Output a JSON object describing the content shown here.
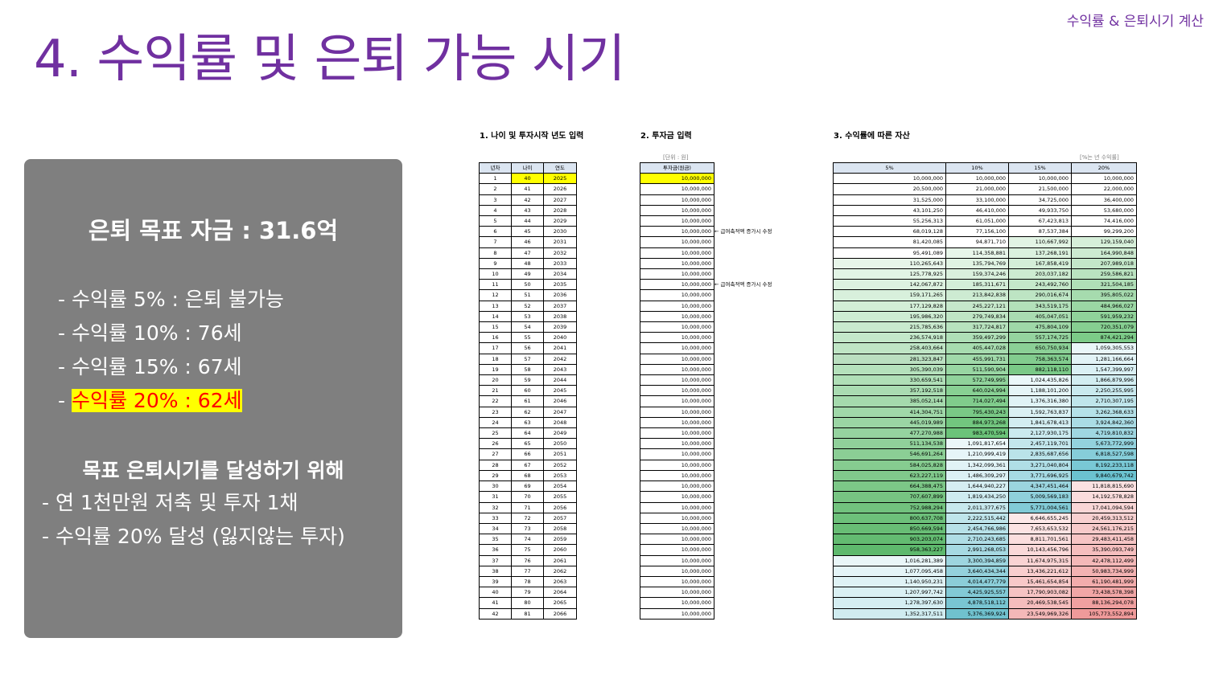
{
  "header": {
    "title": "4. 수익률 및 은퇴 가능 시기",
    "corner_label": "수익률 & 은퇴시기 계산"
  },
  "summary": {
    "goal": "은퇴 목표 자금 : 31.6억",
    "rates": [
      "- 수익률    5% : 은퇴 불가능",
      "- 수익률 10% : 76세",
      "- 수익률 15% : 67세"
    ],
    "highlight_prefix": "- ",
    "highlight": "수익률 20% : 62세",
    "achieve_title": "목표 은퇴시기를 달성하기 위해",
    "achieve_items": [
      "- 연 1천만원 저축 및 투자 1채",
      "- 수익률 20% 달성 (잃지않는 투자)"
    ]
  },
  "section1": {
    "label": "1. 나이 및 투자시작 년도 입력",
    "headers": [
      "년차",
      "나이",
      "연도"
    ]
  },
  "section2": {
    "label": "2. 투자금 입력",
    "unit": "[단위 : 원]",
    "header": "투자금(원금)",
    "memo": "← 급여축적액 증가시 수정"
  },
  "section3": {
    "label": "3. 수익률에 따른 자산",
    "unit": "[%는 년 수익률]",
    "headers": [
      "5%",
      "10%",
      "15%",
      "20%"
    ]
  },
  "colors": {
    "title": "#7030a0",
    "gray_box": "#7f7f7f",
    "highlight_bg": "#ffff00",
    "highlight_text": "#ff0000",
    "header_bg": "#dbe5f1"
  },
  "rows": [
    {
      "n": "1",
      "age": "40",
      "year": "2025",
      "invest": "10,000,000",
      "v": [
        "10,000,000",
        "10,000,000",
        "10,000,000",
        "10,000,000"
      ],
      "c": [
        "",
        "",
        "",
        ""
      ]
    },
    {
      "n": "2",
      "age": "41",
      "year": "2026",
      "invest": "10,000,000",
      "v": [
        "20,500,000",
        "21,000,000",
        "21,500,000",
        "22,000,000"
      ],
      "c": [
        "",
        "",
        "",
        ""
      ]
    },
    {
      "n": "3",
      "age": "42",
      "year": "2027",
      "invest": "10,000,000",
      "v": [
        "31,525,000",
        "33,100,000",
        "34,725,000",
        "36,400,000"
      ],
      "c": [
        "",
        "",
        "",
        ""
      ]
    },
    {
      "n": "4",
      "age": "43",
      "year": "2028",
      "invest": "10,000,000",
      "v": [
        "43,101,250",
        "46,410,000",
        "49,933,750",
        "53,680,000"
      ],
      "c": [
        "",
        "",
        "",
        ""
      ]
    },
    {
      "n": "5",
      "age": "44",
      "year": "2029",
      "invest": "10,000,000",
      "v": [
        "55,256,313",
        "61,051,000",
        "67,423,813",
        "74,416,000"
      ],
      "c": [
        "",
        "",
        "",
        ""
      ]
    },
    {
      "n": "6",
      "age": "45",
      "year": "2030",
      "invest": "10,000,000",
      "v": [
        "68,019,128",
        "77,156,100",
        "87,537,384",
        "99,299,200"
      ],
      "c": [
        "",
        "",
        "",
        ""
      ]
    },
    {
      "n": "7",
      "age": "46",
      "year": "2031",
      "invest": "10,000,000",
      "v": [
        "81,420,085",
        "94,871,710",
        "110,667,992",
        "129,159,040"
      ],
      "c": [
        "",
        "",
        "#e2f4e4",
        "#d6efd9"
      ]
    },
    {
      "n": "8",
      "age": "47",
      "year": "2032",
      "invest": "10,000,000",
      "v": [
        "95,491,089",
        "114,358,881",
        "137,268,191",
        "164,990,848"
      ],
      "c": [
        "",
        "#e8f6ea",
        "#dbf1de",
        "#cdebd1"
      ]
    },
    {
      "n": "9",
      "age": "48",
      "year": "2033",
      "invest": "10,000,000",
      "v": [
        "110,265,643",
        "135,794,769",
        "167,858,419",
        "207,989,018"
      ],
      "c": [
        "#e7f5e9",
        "#e0f3e3",
        "#d4eed8",
        "#c4e7c9"
      ]
    },
    {
      "n": "10",
      "age": "49",
      "year": "2034",
      "invest": "10,000,000",
      "v": [
        "125,778,925",
        "159,374,246",
        "203,037,182",
        "259,586,821"
      ],
      "c": [
        "#e2f4e5",
        "#daf0dd",
        "#cdebd1",
        "#bae3c0"
      ]
    },
    {
      "n": "11",
      "age": "50",
      "year": "2035",
      "invest": "10,000,000",
      "v": [
        "142,067,872",
        "185,311,671",
        "243,492,760",
        "321,504,185"
      ],
      "c": [
        "#ddf2e0",
        "#d4eed8",
        "#c5e8ca",
        "#b0dfb7"
      ]
    },
    {
      "n": "12",
      "age": "51",
      "year": "2036",
      "invest": "10,000,000",
      "v": [
        "159,171,265",
        "213,842,838",
        "290,016,674",
        "395,805,022"
      ],
      "c": [
        "#d8f0dc",
        "#cdebd2",
        "#bde4c3",
        "#a6dbae"
      ]
    },
    {
      "n": "13",
      "age": "52",
      "year": "2037",
      "invest": "10,000,000",
      "v": [
        "177,129,828",
        "245,227,121",
        "343,519,175",
        "484,966,027"
      ],
      "c": [
        "#d3eed7",
        "#c6e8cb",
        "#b3e0ba",
        "#9bd7a4"
      ]
    },
    {
      "n": "14",
      "age": "53",
      "year": "2038",
      "invest": "10,000,000",
      "v": [
        "195,986,320",
        "279,749,834",
        "405,047,051",
        "591,959,232"
      ],
      "c": [
        "#ceecd3",
        "#bfe5c5",
        "#a9dcb1",
        "#90d39a"
      ]
    },
    {
      "n": "15",
      "age": "54",
      "year": "2039",
      "invest": "10,000,000",
      "v": [
        "215,785,636",
        "317,724,817",
        "475,804,109",
        "720,351,079"
      ],
      "c": [
        "#c9eace",
        "#b7e2be",
        "#9fd8a8",
        "#86cf91"
      ]
    },
    {
      "n": "16",
      "age": "55",
      "year": "2040",
      "invest": "10,000,000",
      "v": [
        "236,574,918",
        "359,497,299",
        "557,174,725",
        "874,421,294"
      ],
      "c": [
        "#c4e8ca",
        "#afdfb7",
        "#95d49f",
        "#7ccb88"
      ]
    },
    {
      "n": "17",
      "age": "56",
      "year": "2041",
      "invest": "10,000,000",
      "v": [
        "258,403,664",
        "405,447,028",
        "650,750,934",
        "1,059,305,553"
      ],
      "c": [
        "#bfe5c5",
        "#a7dcaf",
        "#8bd096",
        "#e9f6f8"
      ]
    },
    {
      "n": "18",
      "age": "57",
      "year": "2042",
      "invest": "10,000,000",
      "v": [
        "281,323,847",
        "455,991,731",
        "758,363,574",
        "1,281,166,664"
      ],
      "c": [
        "#badfc0",
        "#a0d9a9",
        "#82cc8e",
        "#e2f3f6"
      ]
    },
    {
      "n": "19",
      "age": "58",
      "year": "2043",
      "invest": "10,000,000",
      "v": [
        "305,390,039",
        "511,590,904",
        "882,118,110",
        "1,547,399,997"
      ],
      "c": [
        "#b5e1bc",
        "#98d6a2",
        "#7ac987",
        "#daf0f4"
      ]
    },
    {
      "n": "20",
      "age": "59",
      "year": "2044",
      "invest": "10,000,000",
      "v": [
        "330,659,541",
        "572,749,995",
        "1,024,435,826",
        "1,866,879,996"
      ],
      "c": [
        "#b0dfb7",
        "#90d39b",
        "#eaf7f9",
        "#d2edf1"
      ]
    },
    {
      "n": "21",
      "age": "60",
      "year": "2045",
      "invest": "10,000,000",
      "v": [
        "357,192,518",
        "640,024,994",
        "1,188,101,200",
        "2,250,255,995"
      ],
      "c": [
        "#aadcb2",
        "#88d093",
        "#e5f5f7",
        "#c9e9ee"
      ]
    },
    {
      "n": "22",
      "age": "61",
      "year": "2046",
      "invest": "10,000,000",
      "v": [
        "385,052,144",
        "714,027,494",
        "1,376,316,380",
        "2,710,307,195"
      ],
      "c": [
        "#a5daad",
        "#80cc8c",
        "#e0f3f6",
        "#bfe5eb"
      ]
    },
    {
      "n": "23",
      "age": "62",
      "year": "2047",
      "invest": "10,000,000",
      "v": [
        "414,304,751",
        "795,430,243",
        "1,592,763,837",
        "3,262,368,633"
      ],
      "c": [
        "#a0d8a9",
        "#79c986",
        "#daf0f3",
        "#b5e1e8"
      ]
    },
    {
      "n": "24",
      "age": "63",
      "year": "2048",
      "invest": "10,000,000",
      "v": [
        "445,019,989",
        "884,973,268",
        "1,841,678,413",
        "3,924,842,360"
      ],
      "c": [
        "#9bd5a4",
        "#72c67f",
        "#d3edf1",
        "#aadce5"
      ]
    },
    {
      "n": "25",
      "age": "64",
      "year": "2049",
      "invest": "10,000,000",
      "v": [
        "477,270,988",
        "983,470,594",
        "2,127,930,175",
        "4,719,810,832"
      ],
      "c": [
        "#95d39f",
        "#6bc379",
        "#cbeaef",
        "#9fd7e1"
      ]
    },
    {
      "n": "26",
      "age": "65",
      "year": "2050",
      "invest": "10,000,000",
      "v": [
        "511,134,538",
        "1,091,817,654",
        "2,457,119,701",
        "5,673,772,999"
      ],
      "c": [
        "#90d09a",
        "#ebf7f9",
        "#c3e6ec",
        "#93d2dd"
      ]
    },
    {
      "n": "27",
      "age": "66",
      "year": "2051",
      "invest": "10,000,000",
      "v": [
        "546,691,264",
        "1,210,999,419",
        "2,835,687,656",
        "6,818,527,598"
      ],
      "c": [
        "#8bce95",
        "#e6f5f8",
        "#bae3e9",
        "#86cdd9"
      ]
    },
    {
      "n": "28",
      "age": "67",
      "year": "2052",
      "invest": "10,000,000",
      "v": [
        "584,025,828",
        "1,342,099,361",
        "3,271,040,804",
        "8,192,233,118"
      ],
      "c": [
        "#86cc90",
        "#e1f3f6",
        "#b0dee6",
        "#79c8d5"
      ]
    },
    {
      "n": "29",
      "age": "68",
      "year": "2053",
      "invest": "10,000,000",
      "v": [
        "623,227,119",
        "1,486,309,297",
        "3,771,696,925",
        "9,840,679,742"
      ],
      "c": [
        "#81c98c",
        "#dbf0f4",
        "#a6dae3",
        "#6bc2d0"
      ]
    },
    {
      "n": "30",
      "age": "69",
      "year": "2054",
      "invest": "10,000,000",
      "v": [
        "664,388,475",
        "1,644,940,227",
        "4,347,451,464",
        "11,818,815,690"
      ],
      "c": [
        "#7cc787",
        "#d5eef2",
        "#9bd5df",
        "#fbe1e1"
      ]
    },
    {
      "n": "31",
      "age": "70",
      "year": "2055",
      "invest": "10,000,000",
      "v": [
        "707,607,899",
        "1,819,434,250",
        "5,009,569,183",
        "14,192,578,828"
      ],
      "c": [
        "#77c482",
        "#ceebf0",
        "#8fd0db",
        "#fadcdc"
      ]
    },
    {
      "n": "32",
      "age": "71",
      "year": "2056",
      "invest": "10,000,000",
      "v": [
        "752,988,294",
        "2,011,377,675",
        "5,771,004,561",
        "17,041,094,594"
      ],
      "c": [
        "#72c27e",
        "#c7e8ed",
        "#82cbd7",
        "#f9d6d6"
      ]
    },
    {
      "n": "33",
      "age": "72",
      "year": "2057",
      "invest": "10,000,000",
      "v": [
        "800,637,708",
        "2,222,515,442",
        "6,646,655,245",
        "20,459,313,512"
      ],
      "c": [
        "#6dc07a",
        "#bfe5eb",
        "#fde8e8",
        "#f8d0d0"
      ]
    },
    {
      "n": "34",
      "age": "73",
      "year": "2058",
      "invest": "10,000,000",
      "v": [
        "850,669,594",
        "2,454,766,986",
        "7,653,653,532",
        "24,561,176,215"
      ],
      "c": [
        "#68bd75",
        "#b7e1e8",
        "#fce3e3",
        "#f7caca"
      ]
    },
    {
      "n": "35",
      "age": "74",
      "year": "2059",
      "invest": "10,000,000",
      "v": [
        "903,203,074",
        "2,710,243,685",
        "8,811,701,561",
        "29,483,411,458"
      ],
      "c": [
        "#63bb71",
        "#afdde5",
        "#fbdede",
        "#f6c4c4"
      ]
    },
    {
      "n": "36",
      "age": "75",
      "year": "2060",
      "invest": "10,000,000",
      "v": [
        "958,363,227",
        "2,991,268,053",
        "10,143,456,796",
        "35,390,093,749"
      ],
      "c": [
        "#5eb96d",
        "#a6d9e2",
        "#fad9d9",
        "#f5bebe"
      ]
    },
    {
      "n": "37",
      "age": "76",
      "year": "2061",
      "invest": "10,000,000",
      "v": [
        "1,016,281,389",
        "3,300,394,859",
        "11,674,975,315",
        "42,478,112,499"
      ],
      "c": [
        "#e9f6f8",
        "#9dd5df",
        "#f9d3d3",
        "#f4b8b8"
      ]
    },
    {
      "n": "38",
      "age": "77",
      "year": "2062",
      "invest": "10,000,000",
      "v": [
        "1,077,095,458",
        "3,640,434,344",
        "13,436,221,612",
        "50,983,734,999"
      ],
      "c": [
        "#e4f4f7",
        "#94d1dc",
        "#f8cece",
        "#f3b2b2"
      ]
    },
    {
      "n": "39",
      "age": "78",
      "year": "2063",
      "invest": "10,000,000",
      "v": [
        "1,140,950,231",
        "4,014,477,779",
        "15,461,654,854",
        "61,190,481,999"
      ],
      "c": [
        "#dff2f5",
        "#8bcdd8",
        "#f7c8c8",
        "#f2acac"
      ]
    },
    {
      "n": "40",
      "age": "79",
      "year": "2064",
      "invest": "10,000,000",
      "v": [
        "1,207,997,742",
        "4,425,925,557",
        "17,790,903,082",
        "73,438,578,398"
      ],
      "c": [
        "#daf0f3",
        "#82c9d5",
        "#f6c3c3",
        "#f1a6a6"
      ]
    },
    {
      "n": "41",
      "age": "80",
      "year": "2065",
      "invest": "10,000,000",
      "v": [
        "1,278,397,630",
        "4,878,518,112",
        "20,469,538,545",
        "88,136,294,078"
      ],
      "c": [
        "#d5eef2",
        "#79c5d2",
        "#f5bdbd",
        "#f0a0a0"
      ]
    },
    {
      "n": "42",
      "age": "81",
      "year": "2066",
      "invest": "10,000,000",
      "v": [
        "1,352,317,511",
        "5,376,369,924",
        "23,549,969,326",
        "105,773,552,894"
      ],
      "c": [
        "#d0ecf0",
        "#70c1ce",
        "#f4b8b8",
        "#ef9a9a"
      ]
    }
  ]
}
